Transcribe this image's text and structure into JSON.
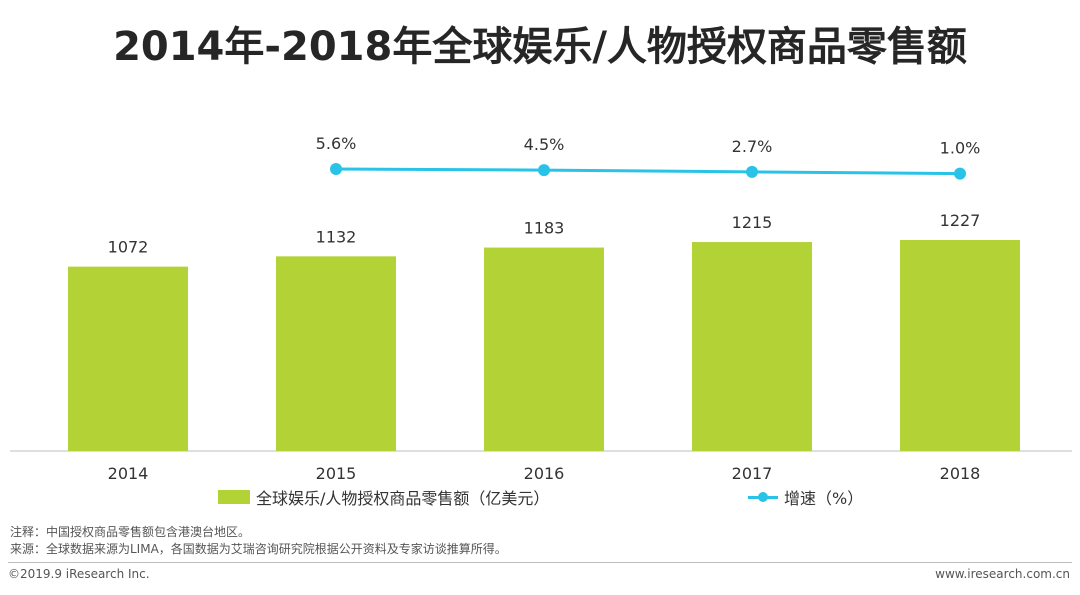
{
  "chart_data": {
    "type": "bar",
    "title": "2014年-2018年全球娱乐/人物授权商品零售额",
    "categories": [
      "2014",
      "2015",
      "2016",
      "2017",
      "2018"
    ],
    "series": [
      {
        "name": "全球娱乐/人物授权商品零售额（亿美元）",
        "type": "bar",
        "color": "#b2d235",
        "values": [
          1072,
          1132,
          1183,
          1215,
          1227
        ],
        "labels": [
          "1072",
          "1132",
          "1183",
          "1215",
          "1227"
        ]
      },
      {
        "name": "增速（%）",
        "type": "line",
        "color": "#29c3e8",
        "values": [
          null,
          5.6,
          4.5,
          2.7,
          1.0
        ],
        "labels": [
          "",
          "5.6%",
          "4.5%",
          "2.7%",
          "1.0%"
        ]
      }
    ],
    "ylim": [
      0,
      1300
    ],
    "grid": false,
    "legend_position": "bottom"
  },
  "notes": {
    "note": "注释：中国授权商品零售额包含港澳台地区。",
    "source": "来源：全球数据来源为LIMA，各国数据为艾瑞咨询研究院根据公开资料及专家访谈推算所得。"
  },
  "footer": {
    "copyright": "©2019.9 iResearch Inc.",
    "website": "www.iresearch.com.cn"
  }
}
